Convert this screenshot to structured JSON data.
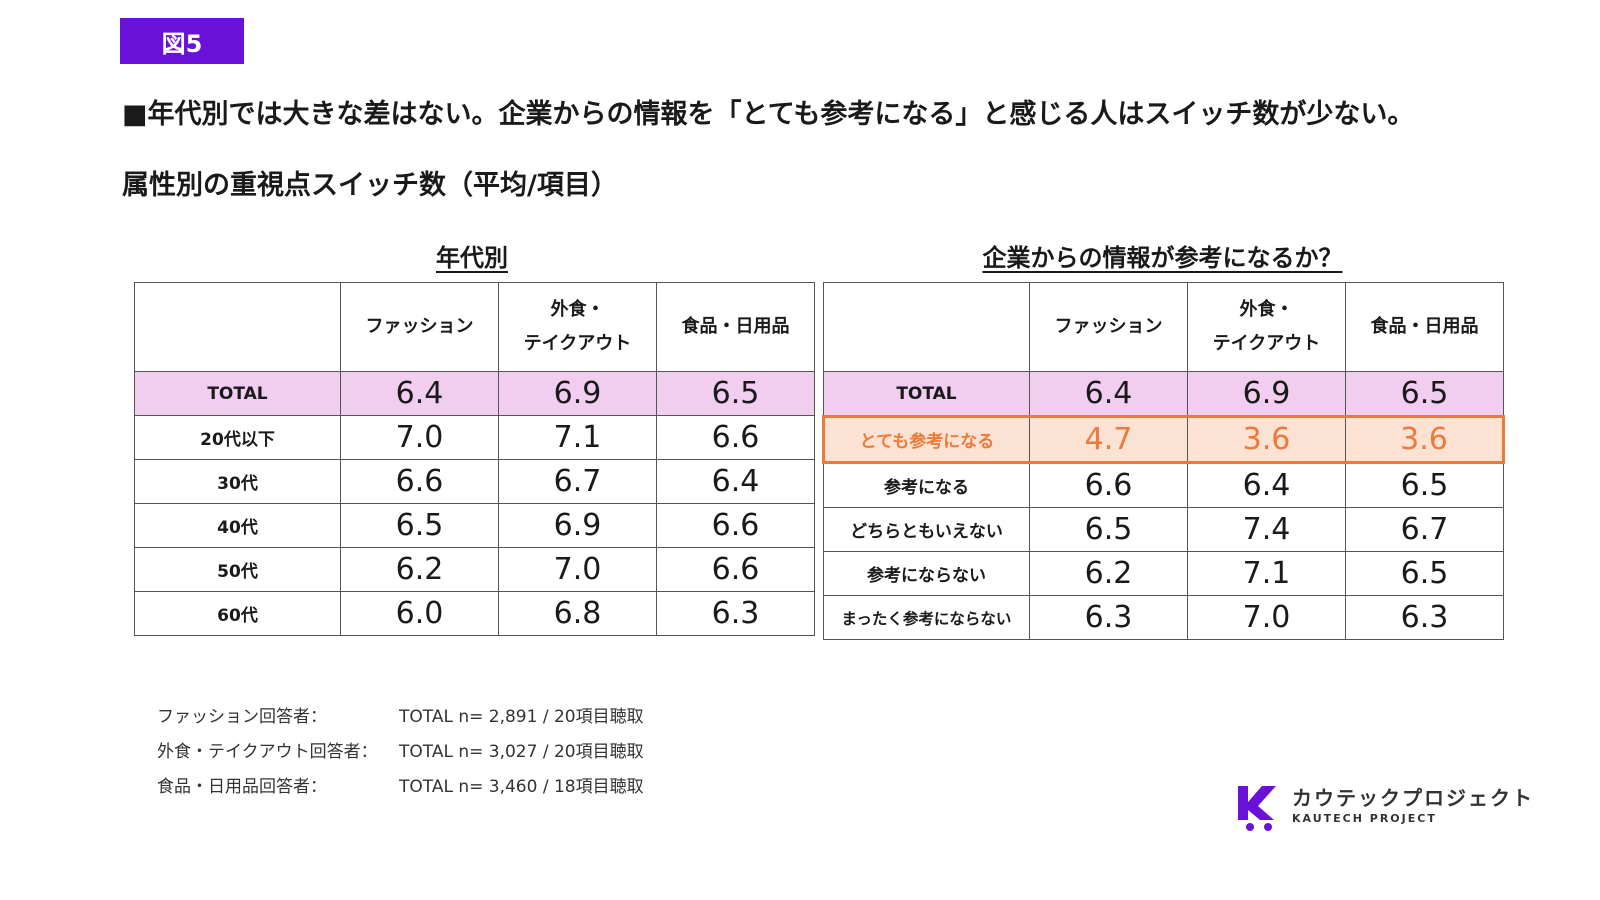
{
  "figure_badge": "図5",
  "headline": "■年代別では大きな差はない。企業からの情報を「とても参考になる」と感じる人はスイッチ数が少ない。",
  "subtitle": "属性別の重視点スイッチ数（平均/項目）",
  "left_table": {
    "title": "年代別",
    "columns": [
      "",
      "ファッション",
      "外食・\nテイクアウト",
      "食品・日用品"
    ],
    "rows": [
      {
        "label": "TOTAL",
        "values": [
          "6.4",
          "6.9",
          "6.5"
        ]
      },
      {
        "label": "20代以下",
        "values": [
          "7.0",
          "7.1",
          "6.6"
        ]
      },
      {
        "label": "30代",
        "values": [
          "6.6",
          "6.7",
          "6.4"
        ]
      },
      {
        "label": "40代",
        "values": [
          "6.5",
          "6.9",
          "6.6"
        ]
      },
      {
        "label": "50代",
        "values": [
          "6.2",
          "7.0",
          "6.6"
        ]
      },
      {
        "label": "60代",
        "values": [
          "6.0",
          "6.8",
          "6.3"
        ]
      }
    ]
  },
  "right_table": {
    "title": "企業からの情報が参考になるか？",
    "columns": [
      "",
      "ファッション",
      "外食・\nテイクアウト",
      "食品・日用品"
    ],
    "rows": [
      {
        "label": "TOTAL",
        "values": [
          "6.4",
          "6.9",
          "6.5"
        ]
      },
      {
        "label": "とても参考になる",
        "values": [
          "4.7",
          "3.6",
          "3.6"
        ]
      },
      {
        "label": "参考になる",
        "values": [
          "6.6",
          "6.4",
          "6.5"
        ]
      },
      {
        "label": "どちらともいえない",
        "values": [
          "6.5",
          "7.4",
          "6.7"
        ]
      },
      {
        "label": "参考にならない",
        "values": [
          "6.2",
          "7.1",
          "6.5"
        ]
      },
      {
        "label": "まったく参考にならない",
        "values": [
          "6.3",
          "7.0",
          "6.3"
        ]
      }
    ]
  },
  "colors": {
    "badge": "#6a11d9",
    "total_row": "#f1cdef",
    "highlight_fill": "#fbe2d3",
    "highlight_accent": "#ea7b3b",
    "logo_purple": "#6a11d9"
  },
  "notes": [
    {
      "label": "ファッション回答者：",
      "value": "TOTAL n= 2,891 / 20項目聴取"
    },
    {
      "label": "外食・テイクアウト回答者：",
      "value": "TOTAL n= 3,027 / 20項目聴取"
    },
    {
      "label": "食品・日用品回答者：",
      "value": "TOTAL n= 3,460 / 18項目聴取"
    }
  ],
  "logo": {
    "icon": "cart-k-icon",
    "name": "カウテックプロジェクト",
    "sub": "KAUTECH PROJECT"
  }
}
